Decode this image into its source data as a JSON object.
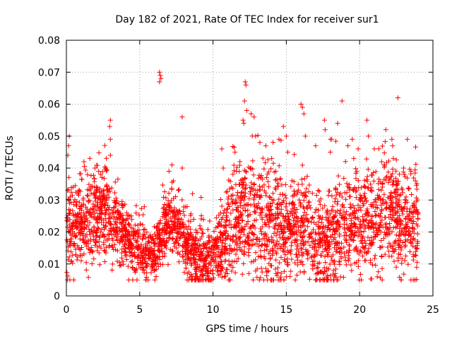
{
  "chart_data": {
    "type": "scatter",
    "title": "Day 182 of 2021, Rate Of TEC Index for receiver sur1",
    "xlabel": "GPS time / hours",
    "ylabel": "ROTI / TECUs",
    "xlim": [
      0,
      25
    ],
    "ylim": [
      0,
      0.08
    ],
    "xticks": [
      0,
      5,
      10,
      15,
      20,
      25
    ],
    "yticks": [
      0,
      0.01,
      0.02,
      0.03,
      0.04,
      0.05,
      0.06,
      0.07,
      0.08
    ],
    "ytick_labels": [
      "0",
      "0.01",
      "0.02",
      "0.03",
      "0.04",
      "0.05",
      "0.06",
      "0.07",
      "0.08"
    ],
    "xtick_labels": [
      "0",
      "5",
      "10",
      "15",
      "20",
      "25"
    ],
    "grid": true,
    "marker": "+",
    "series_color": "#ff0000",
    "trend": [
      [
        0.0,
        0.02
      ],
      [
        0.5,
        0.022
      ],
      [
        1.0,
        0.022
      ],
      [
        1.5,
        0.023
      ],
      [
        2.0,
        0.025
      ],
      [
        2.5,
        0.026
      ],
      [
        3.0,
        0.025
      ],
      [
        3.5,
        0.022
      ],
      [
        4.0,
        0.019
      ],
      [
        4.5,
        0.016
      ],
      [
        5.0,
        0.015
      ],
      [
        5.5,
        0.013
      ],
      [
        6.0,
        0.013
      ],
      [
        6.5,
        0.018
      ],
      [
        7.0,
        0.024
      ],
      [
        7.5,
        0.022
      ],
      [
        8.0,
        0.017
      ],
      [
        8.5,
        0.014
      ],
      [
        9.0,
        0.012
      ],
      [
        9.5,
        0.011
      ],
      [
        10.0,
        0.012
      ],
      [
        10.5,
        0.015
      ],
      [
        11.0,
        0.02
      ],
      [
        11.5,
        0.022
      ],
      [
        12.0,
        0.024
      ],
      [
        12.5,
        0.025
      ],
      [
        13.0,
        0.025
      ],
      [
        13.5,
        0.022
      ],
      [
        14.0,
        0.02
      ],
      [
        14.5,
        0.022
      ],
      [
        15.0,
        0.02
      ],
      [
        15.5,
        0.022
      ],
      [
        16.0,
        0.023
      ],
      [
        16.5,
        0.02
      ],
      [
        17.0,
        0.018
      ],
      [
        17.5,
        0.016
      ],
      [
        18.0,
        0.017
      ],
      [
        18.5,
        0.019
      ],
      [
        19.0,
        0.02
      ],
      [
        19.5,
        0.022
      ],
      [
        20.0,
        0.022
      ],
      [
        20.5,
        0.023
      ],
      [
        21.0,
        0.025
      ],
      [
        21.5,
        0.026
      ],
      [
        22.0,
        0.026
      ],
      [
        22.5,
        0.025
      ],
      [
        23.0,
        0.023
      ],
      [
        23.5,
        0.022
      ],
      [
        24.0,
        0.022
      ]
    ],
    "spread": [
      [
        0.0,
        0.007
      ],
      [
        2.0,
        0.007
      ],
      [
        4.0,
        0.005
      ],
      [
        6.0,
        0.004
      ],
      [
        8.0,
        0.006
      ],
      [
        10.0,
        0.004
      ],
      [
        11.0,
        0.008
      ],
      [
        13.0,
        0.01
      ],
      [
        15.0,
        0.009
      ],
      [
        17.0,
        0.007
      ],
      [
        19.0,
        0.008
      ],
      [
        21.0,
        0.009
      ],
      [
        24.0,
        0.008
      ]
    ],
    "outliers": [
      [
        0.2,
        0.05
      ],
      [
        0.15,
        0.047
      ],
      [
        0.1,
        0.044
      ],
      [
        1.2,
        0.042
      ],
      [
        1.6,
        0.043
      ],
      [
        2.2,
        0.039
      ],
      [
        2.7,
        0.04
      ],
      [
        3.0,
        0.055
      ],
      [
        2.95,
        0.053
      ],
      [
        3.0,
        0.049
      ],
      [
        3.0,
        0.044
      ],
      [
        6.35,
        0.07
      ],
      [
        6.4,
        0.069
      ],
      [
        6.45,
        0.068
      ],
      [
        6.35,
        0.067
      ],
      [
        7.0,
        0.039
      ],
      [
        7.3,
        0.036
      ],
      [
        7.2,
        0.041
      ],
      [
        7.9,
        0.056
      ],
      [
        7.9,
        0.04
      ],
      [
        8.6,
        0.032
      ],
      [
        10.6,
        0.046
      ],
      [
        10.7,
        0.04
      ],
      [
        11.5,
        0.045
      ],
      [
        11.6,
        0.039
      ],
      [
        12.05,
        0.055
      ],
      [
        12.1,
        0.054
      ],
      [
        12.15,
        0.061
      ],
      [
        12.2,
        0.067
      ],
      [
        12.25,
        0.066
      ],
      [
        12.3,
        0.058
      ],
      [
        12.6,
        0.057
      ],
      [
        12.8,
        0.056
      ],
      [
        12.9,
        0.05
      ],
      [
        13.2,
        0.048
      ],
      [
        13.6,
        0.047
      ],
      [
        14.0,
        0.043
      ],
      [
        14.5,
        0.049
      ],
      [
        14.8,
        0.053
      ],
      [
        15.0,
        0.05
      ],
      [
        15.1,
        0.045
      ],
      [
        16.0,
        0.06
      ],
      [
        16.1,
        0.059
      ],
      [
        16.2,
        0.057
      ],
      [
        16.3,
        0.05
      ],
      [
        17.0,
        0.047
      ],
      [
        17.6,
        0.055
      ],
      [
        17.65,
        0.052
      ],
      [
        18.0,
        0.045
      ],
      [
        18.1,
        0.049
      ],
      [
        18.5,
        0.054
      ],
      [
        18.8,
        0.061
      ],
      [
        19.2,
        0.047
      ],
      [
        19.5,
        0.049
      ],
      [
        19.6,
        0.043
      ],
      [
        19.9,
        0.046
      ],
      [
        20.5,
        0.055
      ],
      [
        20.6,
        0.05
      ],
      [
        21.0,
        0.046
      ],
      [
        21.5,
        0.042
      ],
      [
        22.2,
        0.049
      ],
      [
        22.25,
        0.047
      ],
      [
        22.3,
        0.043
      ],
      [
        23.0,
        0.04
      ],
      [
        23.5,
        0.039
      ],
      [
        9.5,
        0.007
      ],
      [
        10.0,
        0.008
      ],
      [
        15.0,
        0.006
      ],
      [
        17.5,
        0.005
      ],
      [
        14.3,
        0.007
      ],
      [
        21.2,
        0.006
      ],
      [
        22.5,
        0.009
      ],
      [
        5.3,
        0.008
      ]
    ]
  }
}
